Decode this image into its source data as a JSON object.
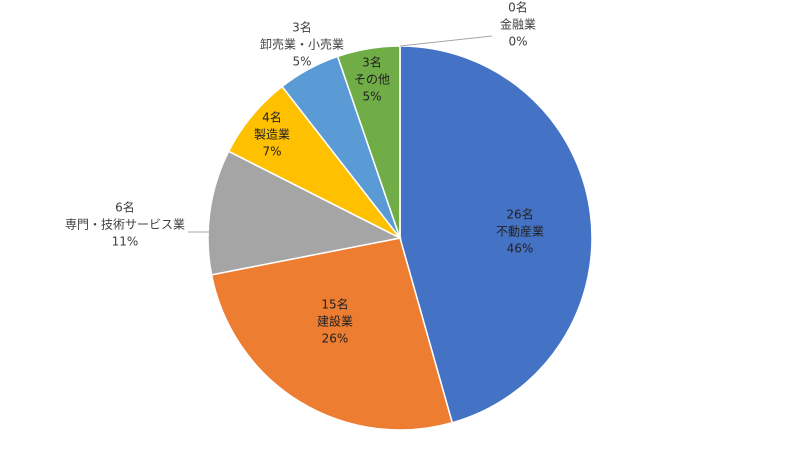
{
  "chart_data": {
    "type": "pie",
    "categories": [
      "不動産業",
      "建設業",
      "専門・技術サービス業",
      "製造業",
      "卸売業・小売業",
      "その他",
      "金融業"
    ],
    "values": [
      26,
      15,
      6,
      4,
      3,
      3,
      0
    ],
    "value_labels": [
      "26名",
      "15名",
      "6名",
      "4名",
      "3名",
      "3名",
      "0名"
    ],
    "percent_labels": [
      "46%",
      "26%",
      "11%",
      "7%",
      "5%",
      "5%",
      "0%"
    ],
    "colors": [
      "#4472c4",
      "#ed7d31",
      "#a5a5a5",
      "#ffc000",
      "#5b9bd5",
      "#70ad47",
      "#264478"
    ]
  }
}
